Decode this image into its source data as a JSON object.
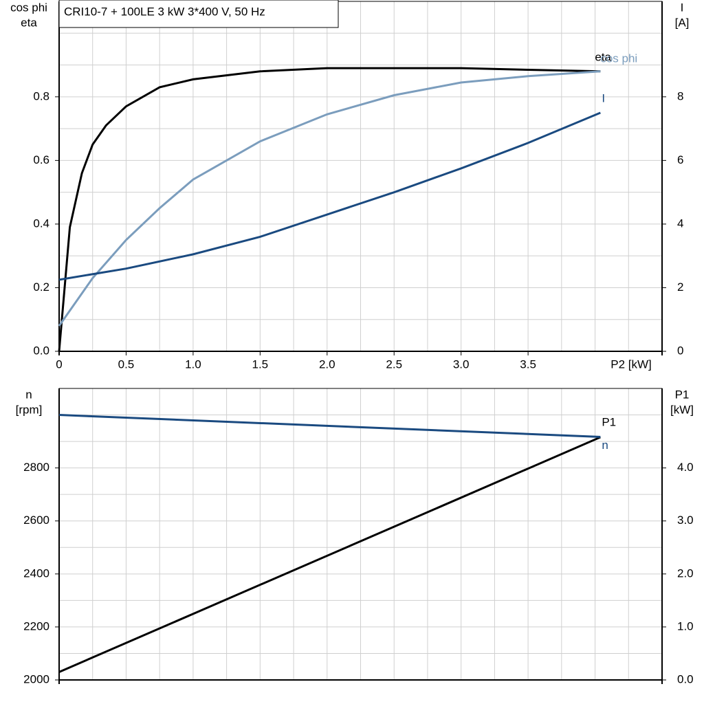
{
  "chart_data": [
    {
      "type": "line",
      "title": "CRI10-7 + 100LE   3 kW   3*400 V, 50 Hz",
      "xlabel": "P2 [kW]",
      "ylabel": [
        "cos phi",
        "eta"
      ],
      "y2label": [
        "I",
        "[A]"
      ],
      "xlim": [
        0,
        4.5
      ],
      "xticks": [
        {
          "value": 0,
          "label": "0"
        },
        0.5,
        {
          "value": 1,
          "label": "1.0"
        },
        1.5,
        {
          "value": 2,
          "label": "2.0"
        },
        2.5,
        {
          "value": 3,
          "label": "3.0"
        },
        3.5
      ],
      "ylim": [
        0,
        1.1
      ],
      "yticks": [
        {
          "value": 0,
          "label": "0.0"
        },
        0.2,
        0.4,
        0.6,
        0.8
      ],
      "y2lim": [
        0,
        11
      ],
      "y2ticks": [
        0,
        2,
        4,
        6,
        8
      ],
      "grid": true,
      "x_grid_step": 0.25,
      "y_grid_step": 0.1,
      "series": [
        {
          "name": "eta",
          "color": "#000000",
          "x": [
            0,
            0.08,
            0.17,
            0.25,
            0.35,
            0.5,
            0.75,
            1.0,
            1.5,
            2.0,
            2.5,
            3.0,
            3.5,
            4.04
          ],
          "values": [
            0,
            0.39,
            0.56,
            0.65,
            0.71,
            0.77,
            0.83,
            0.855,
            0.88,
            0.89,
            0.89,
            0.89,
            0.885,
            0.88
          ]
        },
        {
          "name": "cos phi",
          "color": "#7b9dbd",
          "x": [
            0,
            0.25,
            0.5,
            0.75,
            1.0,
            1.5,
            2.0,
            2.5,
            3.0,
            3.5,
            4.04
          ],
          "values": [
            0.08,
            0.23,
            0.35,
            0.45,
            0.54,
            0.66,
            0.745,
            0.805,
            0.845,
            0.865,
            0.88
          ]
        },
        {
          "name": "I",
          "color": "#1a4a80",
          "axis": "y2",
          "x": [
            0,
            0.5,
            1.0,
            1.5,
            2.0,
            2.5,
            3.0,
            3.5,
            4.04
          ],
          "values": [
            2.25,
            2.6,
            3.05,
            3.6,
            4.3,
            5.0,
            5.75,
            6.55,
            7.5
          ]
        }
      ]
    },
    {
      "type": "line",
      "ylabel": [
        "n",
        "[rpm]"
      ],
      "y2label": [
        "P1",
        "[kW]"
      ],
      "xlim": [
        0,
        4.5
      ],
      "ylim": [
        2000,
        3100
      ],
      "yticks": [
        2000,
        2200,
        2400,
        2600,
        2800
      ],
      "y2lim": [
        0,
        5.5
      ],
      "y2ticks": [
        {
          "value": 0,
          "label": "0.0"
        },
        {
          "value": 1,
          "label": "1.0"
        },
        {
          "value": 2,
          "label": "2.0"
        },
        {
          "value": 3,
          "label": "3.0"
        },
        {
          "value": 4,
          "label": "4.0"
        }
      ],
      "grid": true,
      "x_grid_step": 0.25,
      "y_grid_step": 100,
      "series": [
        {
          "name": "P1",
          "color": "#000000",
          "axis": "y2",
          "x": [
            0,
            4.04
          ],
          "values": [
            0.15,
            4.58
          ]
        },
        {
          "name": "n",
          "color": "#1a4a80",
          "x": [
            0,
            4.04
          ],
          "values": [
            3000,
            2917
          ]
        }
      ]
    }
  ]
}
